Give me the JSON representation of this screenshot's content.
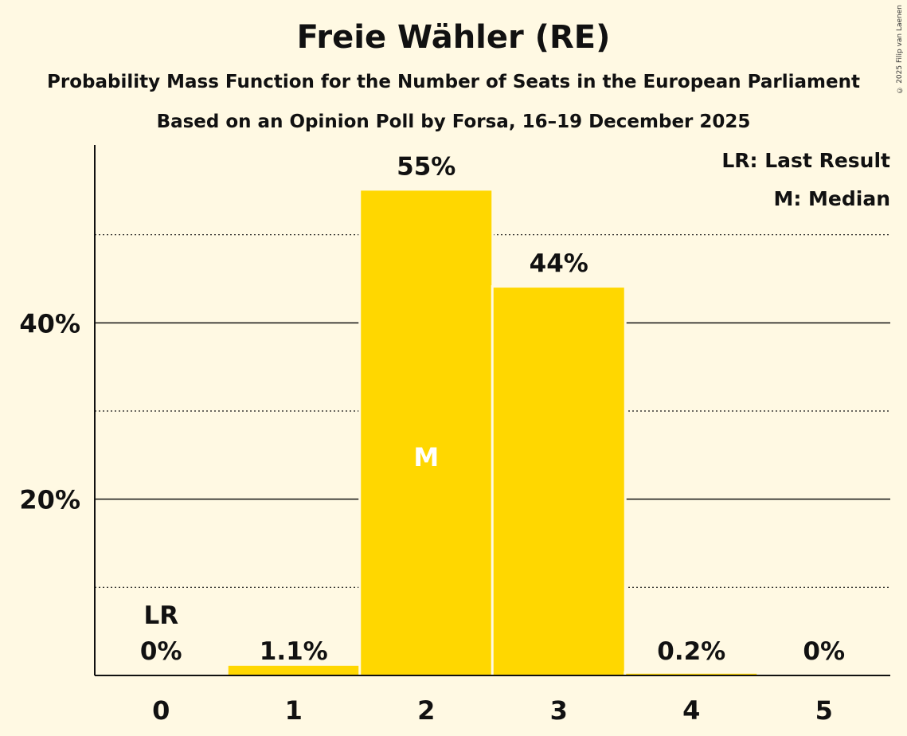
{
  "chart_data": {
    "type": "bar",
    "title": "Freie Wähler (RE)",
    "subtitle": "Probability Mass Function for the Number of Seats in the European Parliament",
    "subtitle2": "Based on an Opinion Poll by Forsa, 16–19 December 2025",
    "copyright": "© 2025 Filip van Laenen",
    "categories": [
      "0",
      "1",
      "2",
      "3",
      "4",
      "5"
    ],
    "values": [
      0,
      1.1,
      55,
      44,
      0.2,
      0
    ],
    "value_labels": [
      "0%",
      "1.1%",
      "55%",
      "44%",
      "0.2%",
      "0%"
    ],
    "ylim": [
      0,
      60
    ],
    "yticks_major": [
      20,
      40
    ],
    "yticks_major_labels": [
      "20%",
      "40%"
    ],
    "yticks_minor": [
      10,
      30,
      50
    ],
    "last_result_index": 0,
    "last_result_label": "LR",
    "median_index": 2,
    "median_label": "M",
    "legend": [
      "LR: Last Result",
      "M: Median"
    ],
    "legend_position": "top-right",
    "bar_color": "#FFD700",
    "xlabel": "",
    "ylabel": ""
  }
}
